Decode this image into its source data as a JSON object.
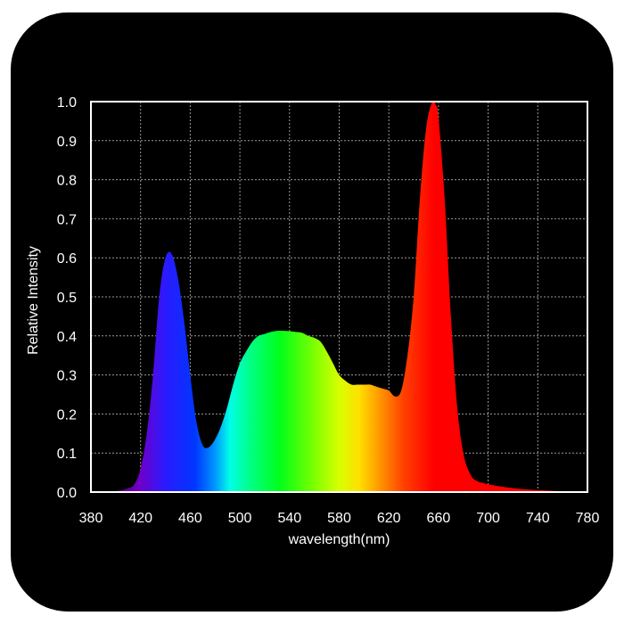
{
  "chart_data": {
    "type": "area",
    "title": "",
    "xlabel": "wavelength(nm)",
    "ylabel": "Relative Intensity",
    "xlim": [
      380,
      780
    ],
    "ylim": [
      0,
      1.0
    ],
    "xticks": [
      380,
      420,
      460,
      500,
      540,
      580,
      620,
      660,
      700,
      740,
      780
    ],
    "yticks": [
      "0.0",
      "0.1",
      "0.2",
      "0.3",
      "0.4",
      "0.5",
      "0.6",
      "0.7",
      "0.8",
      "0.9",
      "1.0"
    ],
    "grid": true,
    "fill": "visible-spectrum gradient",
    "background": "#000000",
    "series": [
      {
        "x": [
          380,
          400,
          410,
          415,
          420,
          425,
          430,
          435,
          440,
          445,
          450,
          455,
          460,
          465,
          470,
          475,
          480,
          485,
          490,
          495,
          500,
          505,
          510,
          515,
          520,
          525,
          530,
          535,
          540,
          545,
          550,
          555,
          560,
          565,
          570,
          575,
          580,
          585,
          590,
          595,
          600,
          605,
          610,
          615,
          620,
          625,
          630,
          635,
          640,
          645,
          650,
          655,
          658,
          660,
          665,
          670,
          675,
          680,
          685,
          690,
          700,
          720,
          740,
          760,
          780
        ],
        "values": [
          0.0,
          0.003,
          0.01,
          0.02,
          0.06,
          0.15,
          0.3,
          0.5,
          0.6,
          0.61,
          0.55,
          0.44,
          0.3,
          0.18,
          0.12,
          0.115,
          0.135,
          0.17,
          0.22,
          0.28,
          0.33,
          0.36,
          0.385,
          0.4,
          0.405,
          0.41,
          0.413,
          0.413,
          0.412,
          0.41,
          0.408,
          0.4,
          0.395,
          0.385,
          0.36,
          0.33,
          0.3,
          0.285,
          0.275,
          0.275,
          0.275,
          0.275,
          0.27,
          0.265,
          0.26,
          0.245,
          0.26,
          0.35,
          0.5,
          0.75,
          0.93,
          1.0,
          0.99,
          0.96,
          0.75,
          0.45,
          0.22,
          0.1,
          0.05,
          0.03,
          0.02,
          0.01,
          0.005,
          0.002,
          0.0
        ]
      }
    ]
  }
}
